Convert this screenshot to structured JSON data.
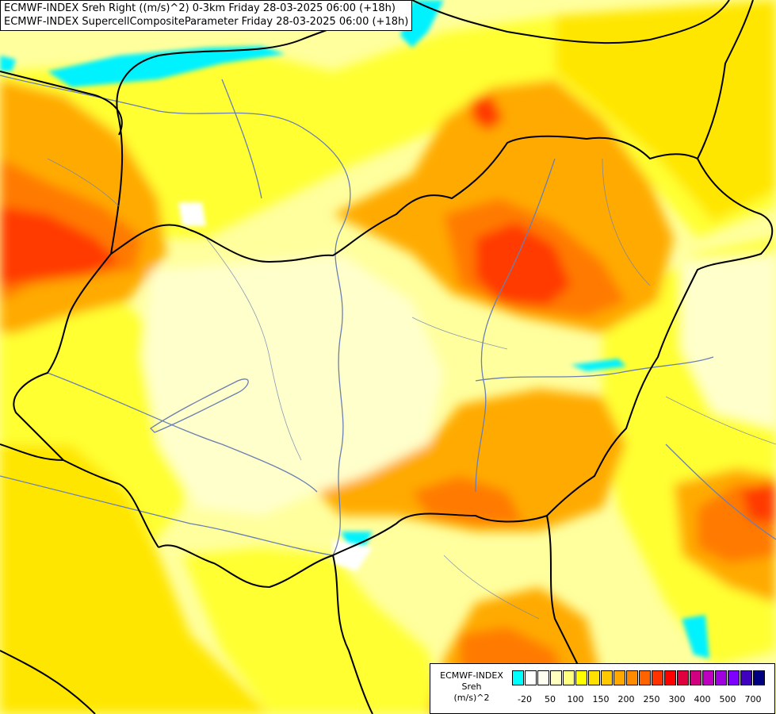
{
  "title_lines": [
    "ECMWF-INDEX Sreh Right ((m/s)^2) 0-3km Friday 28-03-2025 06:00 (+18h)",
    "ECMWF-INDEX SupercellCompositeParameter Friday 28-03-2025 06:00 (+18h)"
  ],
  "legend": {
    "title": [
      "ECMWF-INDEX",
      "Sreh",
      "(m/s)^2"
    ],
    "colors": [
      "#00ffff",
      "#ffffff",
      "#fffff0",
      "#ffffc0",
      "#ffff80",
      "#ffff00",
      "#ffe000",
      "#ffc800",
      "#ffa800",
      "#ff8c00",
      "#ff6400",
      "#ff3200",
      "#ff0000",
      "#e00040",
      "#d00080",
      "#c000c0",
      "#a000e0",
      "#8000ff",
      "#4000c0",
      "#000080"
    ],
    "tick_labels": [
      "-20",
      "50",
      "100",
      "150",
      "200",
      "250",
      "300",
      "400",
      "500",
      "700"
    ]
  },
  "map": {
    "field_colors": {
      "base": "#ffff9e",
      "pale": "#ffffcc",
      "yellow": "#ffff33",
      "gold": "#ffe600",
      "lt_orange": "#ffcc00",
      "orange": "#ffaa00",
      "dk_orange": "#ff7a00",
      "red": "#ff3a00",
      "deep_red": "#f00000",
      "cyan": "#00f2ff",
      "white": "#ffffff"
    },
    "border_color": "#000000",
    "river_color": "#6b7fb0"
  }
}
